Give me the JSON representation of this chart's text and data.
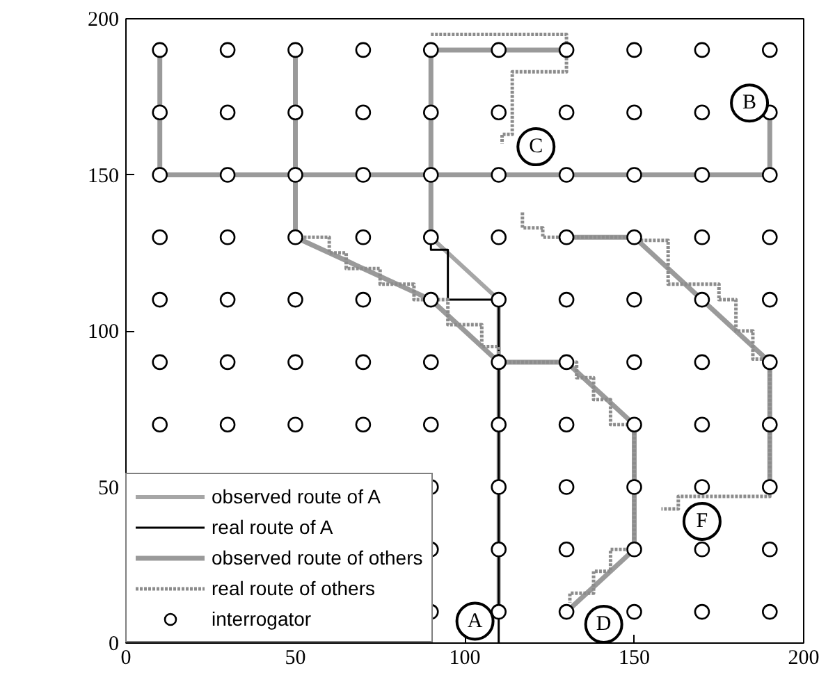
{
  "chart_data": {
    "type": "line",
    "xlim": [
      0,
      200
    ],
    "ylim": [
      0,
      200
    ],
    "xticks": [
      0,
      50,
      100,
      150,
      200
    ],
    "yticks": [
      0,
      50,
      100,
      150,
      200
    ],
    "grid": false,
    "legend": "bottom left",
    "series": [
      {
        "name": "observed route of A",
        "color": "#a6a6a6",
        "x": [
          90,
          110,
          110
        ],
        "values": [
          130,
          110,
          10
        ]
      },
      {
        "name": "real route of A",
        "color": "#000000",
        "x": [
          90,
          90,
          95,
          95,
          110,
          110
        ],
        "values": [
          130,
          126,
          126,
          110,
          110,
          0
        ]
      },
      {
        "name": "observed route of others",
        "color": "#9a9a9a",
        "line_style": "solid",
        "x": [
          10,
          10,
          190,
          190,
          null,
          50,
          50,
          null,
          90,
          90,
          null,
          90,
          130,
          null,
          50,
          90,
          110,
          130,
          150,
          150,
          130,
          null,
          130,
          150,
          170,
          190,
          190
        ],
        "values": [
          190,
          150,
          150,
          170,
          null,
          190,
          130,
          null,
          190,
          130,
          null,
          190,
          190,
          null,
          130,
          110,
          90,
          90,
          70,
          30,
          10,
          null,
          130,
          130,
          110,
          90,
          50
        ]
      },
      {
        "name": "real route of others",
        "color": "#8c8c8c",
        "line_style": "dotted",
        "x": [
          90,
          130,
          130,
          114,
          114,
          111,
          111,
          null,
          50,
          60,
          60,
          65,
          65,
          75,
          75,
          85,
          85,
          95,
          95,
          105,
          105,
          110,
          110,
          133,
          133,
          138,
          138,
          143,
          143,
          150,
          150,
          143,
          143,
          138,
          138,
          131,
          131,
          null,
          117,
          117,
          123,
          123,
          150,
          150,
          160,
          160,
          175,
          175,
          180,
          180,
          185,
          185,
          190,
          190,
          163,
          163,
          158
        ],
        "values": [
          195,
          195,
          183,
          183,
          163,
          163,
          160,
          null,
          130,
          130,
          125,
          125,
          120,
          120,
          115,
          115,
          110,
          110,
          102,
          102,
          95,
          95,
          90,
          90,
          85,
          85,
          78,
          78,
          70,
          70,
          30,
          30,
          23,
          23,
          16,
          16,
          13,
          null,
          138,
          133,
          133,
          130,
          130,
          129,
          129,
          115,
          115,
          110,
          110,
          100,
          100,
          91,
          91,
          47,
          47,
          43,
          43
        ]
      },
      {
        "name": "interrogator",
        "type": "scatter",
        "marker": "circle",
        "color": "#000000",
        "x": [
          10,
          30,
          50,
          70,
          90,
          110,
          130,
          150,
          170,
          190,
          10,
          30,
          50,
          70,
          90,
          110,
          130,
          150,
          170,
          190,
          10,
          30,
          50,
          70,
          90,
          110,
          130,
          150,
          170,
          190,
          10,
          30,
          50,
          70,
          90,
          110,
          130,
          150,
          170,
          190,
          10,
          30,
          50,
          70,
          90,
          110,
          130,
          150,
          170,
          190,
          10,
          30,
          50,
          70,
          90,
          110,
          130,
          150,
          170,
          190,
          10,
          30,
          50,
          70,
          90,
          110,
          130,
          150,
          170,
          190,
          90,
          110,
          130,
          150,
          170,
          190,
          90,
          110,
          130,
          150,
          170,
          190,
          90,
          110,
          130,
          150,
          170,
          190
        ],
        "values": [
          190,
          190,
          190,
          190,
          190,
          190,
          190,
          190,
          190,
          190,
          170,
          170,
          170,
          170,
          170,
          170,
          170,
          170,
          170,
          170,
          150,
          150,
          150,
          150,
          150,
          150,
          150,
          150,
          150,
          150,
          130,
          130,
          130,
          130,
          130,
          130,
          130,
          130,
          130,
          130,
          110,
          110,
          110,
          110,
          110,
          110,
          110,
          110,
          110,
          110,
          90,
          90,
          90,
          90,
          90,
          90,
          90,
          90,
          90,
          90,
          70,
          70,
          70,
          70,
          70,
          70,
          70,
          70,
          70,
          70,
          50,
          50,
          50,
          50,
          50,
          50,
          30,
          30,
          30,
          30,
          30,
          30,
          10,
          10,
          10,
          10,
          10,
          10
        ]
      }
    ],
    "annotations": [
      {
        "text": "A",
        "x": 103,
        "y": 7
      },
      {
        "text": "B",
        "x": 184,
        "y": 173
      },
      {
        "text": "C",
        "x": 121,
        "y": 159
      },
      {
        "text": "D",
        "x": 141,
        "y": 6
      },
      {
        "text": "F",
        "x": 170,
        "y": 39
      }
    ]
  }
}
